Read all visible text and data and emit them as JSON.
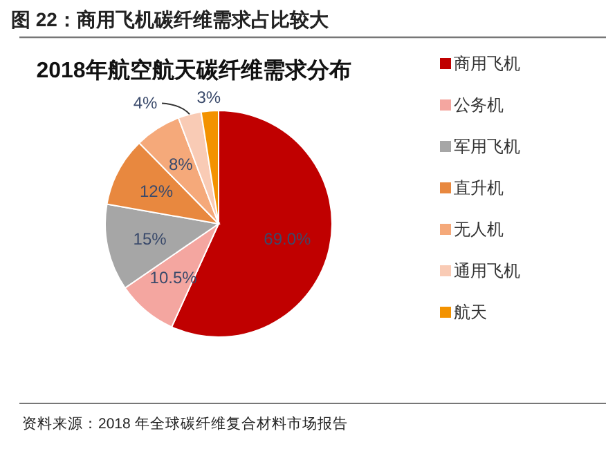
{
  "chart_data": {
    "type": "pie",
    "title": "图 22：商用飞机碳纤维需求占比较大",
    "subtitle": "2018年航空航天碳纤维需求分布",
    "categories": [
      "商用飞机",
      "公务机",
      "军用飞机",
      "直升机",
      "无人机",
      "通用飞机",
      "航天"
    ],
    "values": [
      69.0,
      10.5,
      15,
      12,
      8,
      4,
      3
    ],
    "value_labels": [
      "69.0%",
      "10.5%",
      "15%",
      "12%",
      "8%",
      "4%",
      "3%"
    ],
    "colors": [
      "#c00000",
      "#f4a6a0",
      "#a6a6a6",
      "#e8883f",
      "#f5a97a",
      "#f9cbb5",
      "#f39200"
    ],
    "legend": "right",
    "annotations": [
      "资料来源：2018 年全球碳纤维复合材料市场报告"
    ]
  }
}
